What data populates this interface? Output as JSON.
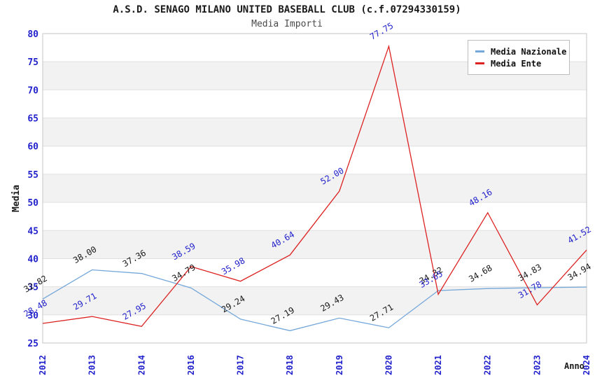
{
  "chart_data": {
    "type": "line",
    "title": "A.S.D. SENAGO MILANO UNITED BASEBALL CLUB (c.f.07294330159)",
    "subtitle": "Media Importi",
    "xlabel": "Anno",
    "ylabel": "Media",
    "categories": [
      "2012",
      "2013",
      "2014",
      "2016",
      "2017",
      "2018",
      "2019",
      "2020",
      "2021",
      "2022",
      "2023",
      "2024"
    ],
    "ylim": [
      25,
      80
    ],
    "ytick_step": 5,
    "yticks": [
      25,
      30,
      35,
      40,
      45,
      50,
      55,
      60,
      65,
      70,
      75,
      80
    ],
    "grid": true,
    "legend_position": "top-right",
    "series": [
      {
        "name": "Media Nazionale",
        "color": "#74a7da",
        "label_color": "#1a1a1a",
        "values": [
          32.82,
          38.0,
          37.36,
          34.79,
          29.24,
          27.19,
          29.43,
          27.71,
          34.32,
          34.68,
          34.83,
          34.94
        ],
        "labels": [
          "32.82",
          "38.00",
          "37.36",
          "34.79",
          "29.24",
          "27.19",
          "29.43",
          "27.71",
          "34.32",
          "34.68",
          "34.83",
          "34.94"
        ]
      },
      {
        "name": "Media Ente",
        "color": "#dd2222",
        "label_color": "#2222cc",
        "values": [
          28.48,
          29.71,
          27.95,
          38.59,
          35.98,
          40.64,
          52.0,
          77.75,
          33.65,
          48.16,
          31.78,
          41.52
        ],
        "labels": [
          "28.48",
          "29.71",
          "27.95",
          "38.59",
          "35.98",
          "40.64",
          "52.00",
          "77.75",
          "33.65",
          "48.16",
          "31.78",
          "41.52"
        ]
      }
    ]
  },
  "style": {
    "stripe_color": "#f2f2f2",
    "grid_color": "#e0e0e0",
    "border_color": "#c6c6c6",
    "axis_tick_color": "#2222cc",
    "title_color": "#1a1a1a",
    "subtitle_color": "#4a4a4a"
  }
}
